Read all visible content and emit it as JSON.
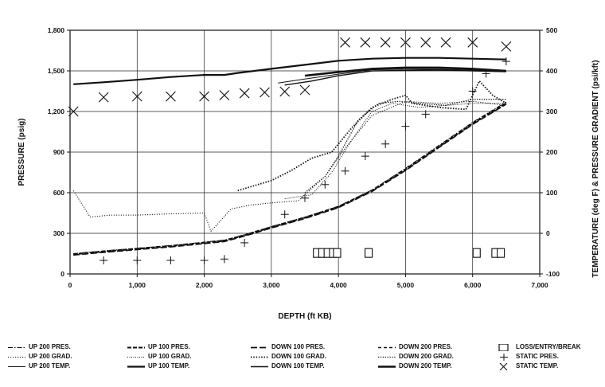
{
  "chart_data": {
    "type": "line",
    "xlabel": "DEPTH (ft KB)",
    "ylabel": "PRESSURE (psig)",
    "y2label": "TEMPERATURE (deg F) & PRESSURE GRADIENT (psi/kft)",
    "xlim": [
      0,
      7000
    ],
    "ylim": [
      0,
      1800
    ],
    "y2lim": [
      -100,
      500
    ],
    "x_ticks": [
      "0",
      "1,000",
      "2,000",
      "3,000",
      "4,000",
      "5,000",
      "6,000",
      "7,000"
    ],
    "y_ticks": [
      "0",
      "300",
      "600",
      "900",
      "1,200",
      "1,500",
      "1,800"
    ],
    "y2_ticks": [
      "-100",
      "0",
      "100",
      "200",
      "300",
      "400",
      "500"
    ],
    "grid": true,
    "legend_position": "bottom",
    "series": [
      {
        "name": "UP 200 PRES.",
        "axis": "left",
        "style": "dashdot",
        "x": [
          50,
          500,
          1000,
          1500,
          2000,
          2300,
          2600,
          3000,
          3500,
          4000,
          4500,
          5000,
          5500,
          6000,
          6500
        ],
        "y": [
          150,
          170,
          190,
          210,
          235,
          250,
          290,
          350,
          420,
          500,
          620,
          780,
          950,
          1120,
          1270
        ]
      },
      {
        "name": "UP 200 GRAD.",
        "axis": "right",
        "style": "dotted",
        "x": [
          50,
          300,
          600,
          1000,
          1500,
          2000,
          2100,
          2400,
          2700,
          3000,
          3400,
          3800,
          4100,
          4500,
          5000,
          5500,
          6000,
          6500
        ],
        "y": [
          105,
          40,
          45,
          45,
          48,
          50,
          5,
          60,
          70,
          75,
          80,
          140,
          210,
          290,
          325,
          320,
          325,
          315
        ]
      },
      {
        "name": "UP 200 TEMP.",
        "axis": "right",
        "style": "thin",
        "x": [
          3100,
          3500,
          4000,
          4500,
          5000,
          5500,
          6000,
          6500
        ],
        "y": [
          370,
          380,
          392,
          403,
          404,
          404,
          402,
          398
        ]
      },
      {
        "name": "UP 100 PRES.",
        "axis": "left",
        "style": "dashed-heavy",
        "x": [
          50,
          500,
          1000,
          1500,
          2000,
          2300,
          2600,
          3000,
          3500,
          4000,
          4500,
          5000,
          5500,
          6000,
          6500
        ],
        "y": [
          145,
          165,
          185,
          205,
          230,
          245,
          285,
          345,
          415,
          495,
          615,
          770,
          940,
          1110,
          1260
        ]
      },
      {
        "name": "UP 100 GRAD.",
        "axis": "right",
        "style": "dotted-fine",
        "x": [
          3200,
          3600,
          3900,
          4200,
          4500,
          4800,
          5200,
          5600,
          6000,
          6500
        ],
        "y": [
          85,
          95,
          150,
          230,
          300,
          320,
          310,
          315,
          320,
          320
        ]
      },
      {
        "name": "UP 100 TEMP.",
        "axis": "right",
        "style": "solid-heavy",
        "x": [
          50,
          500,
          1000,
          1500,
          2000,
          2300,
          2500,
          3000,
          3500,
          4000,
          4500,
          5000,
          5500,
          6000,
          6500
        ],
        "y": [
          367,
          372,
          378,
          385,
          390,
          390,
          395,
          405,
          415,
          425,
          430,
          432,
          432,
          430,
          428
        ]
      },
      {
        "name": "DOWN 100 PRES.",
        "axis": "left",
        "style": "dashed-long",
        "x": [
          50,
          500,
          1000,
          1500,
          2000,
          2300,
          2600,
          3000,
          3500,
          4000,
          4500,
          5000,
          5500,
          6000,
          6500
        ],
        "y": [
          140,
          160,
          180,
          200,
          225,
          240,
          280,
          340,
          410,
          490,
          610,
          765,
          935,
          1105,
          1255
        ]
      },
      {
        "name": "DOWN 100 GRAD.",
        "axis": "right",
        "style": "dotted-heavy",
        "x": [
          2500,
          2700,
          3000,
          3300,
          3600,
          3900,
          4200,
          4500,
          4800,
          5000,
          5100,
          5500,
          5900,
          6100,
          6300,
          6500
        ],
        "y": [
          105,
          115,
          130,
          155,
          185,
          200,
          260,
          310,
          330,
          340,
          320,
          310,
          305,
          375,
          340,
          320
        ]
      },
      {
        "name": "DOWN 100 TEMP.",
        "axis": "right",
        "style": "solid-double",
        "x": [
          3200,
          3600,
          4000,
          4500,
          5000,
          5500,
          6000,
          6500
        ],
        "y": [
          365,
          375,
          388,
          400,
          401,
          402,
          400,
          398
        ]
      },
      {
        "name": "DOWN 200 PRES.",
        "axis": "left",
        "style": "dashed-medium",
        "x": [
          50,
          500,
          1000,
          1500,
          2000,
          2300,
          2600,
          3000,
          3500,
          4000,
          4500,
          5000,
          5500,
          6000,
          6500
        ],
        "y": [
          148,
          168,
          188,
          208,
          233,
          248,
          288,
          348,
          418,
          498,
          618,
          775,
          945,
          1115,
          1265
        ]
      },
      {
        "name": "DOWN 200 GRAD.",
        "axis": "right",
        "style": "dotted-medium",
        "x": [
          3500,
          3800,
          4000,
          4300,
          4600,
          4900,
          5200,
          5600,
          6000,
          6500
        ],
        "y": [
          100,
          140,
          190,
          280,
          320,
          325,
          320,
          315,
          330,
          330
        ]
      },
      {
        "name": "DOWN 200 TEMP.",
        "axis": "right",
        "style": "solid-thick",
        "x": [
          3500,
          4000,
          4500,
          5000,
          5500,
          6000,
          6500
        ],
        "y": [
          388,
          397,
          405,
          408,
          408,
          405,
          400
        ]
      }
    ],
    "markers": [
      {
        "name": "STATIC PRES.",
        "symbol": "+",
        "axis": "left",
        "x": [
          500,
          1000,
          1500,
          2000,
          2300,
          2600,
          3200,
          3500,
          3800,
          4100,
          4400,
          4700,
          5000,
          5300,
          6000,
          6200,
          6500
        ],
        "y": [
          100,
          100,
          100,
          100,
          110,
          230,
          440,
          560,
          660,
          760,
          870,
          960,
          1090,
          1180,
          1350,
          1480,
          1570
        ]
      },
      {
        "name": "STATIC TEMP.",
        "symbol": "x",
        "axis": "right",
        "x": [
          50,
          500,
          1000,
          1500,
          2000,
          2300,
          2600,
          2900,
          3200,
          3500,
          4100,
          4400,
          4700,
          5000,
          5300,
          5600,
          6000,
          6500
        ],
        "y": [
          300,
          335,
          337,
          337,
          337,
          340,
          345,
          347,
          349,
          353,
          470,
          470,
          470,
          470,
          470,
          470,
          470,
          460
        ]
      },
      {
        "name": "LOSS/ENTRY/BREAK",
        "symbol": "square",
        "axis": "left",
        "x": [
          3680,
          3760,
          3840,
          3920,
          3980,
          4450,
          6060,
          6340,
          6420
        ],
        "y": [
          155,
          155,
          155,
          155,
          155,
          155,
          155,
          155,
          155
        ]
      }
    ]
  }
}
